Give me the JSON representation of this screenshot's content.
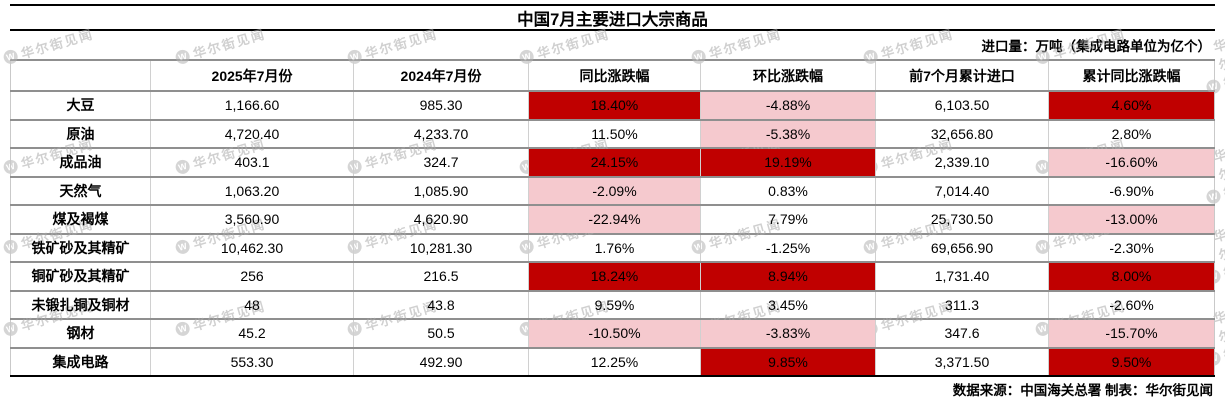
{
  "chart_data": {
    "type": "table",
    "title": "中国7月主要进口大宗商品",
    "unit_note": "进口量：万吨（集成电路单位为亿个）",
    "columns": [
      "",
      "2025年7月份",
      "2024年7月份",
      "同比涨跌幅",
      "环比涨跌幅",
      "前7个月累计进口",
      "累计同比涨跌幅"
    ],
    "rows": [
      {
        "cells": [
          "大豆",
          "1,166.60",
          "985.30",
          "18.40%",
          "-4.88%",
          "6,103.50",
          "4.60%"
        ],
        "highlights": [
          "",
          "",
          "",
          "red",
          "pink",
          "",
          "red"
        ]
      },
      {
        "cells": [
          "原油",
          "4,720.40",
          "4,233.70",
          "11.50%",
          "-5.38%",
          "32,656.80",
          "2.80%"
        ],
        "highlights": [
          "",
          "",
          "",
          "",
          "pink",
          "",
          ""
        ]
      },
      {
        "cells": [
          "成品油",
          "403.1",
          "324.7",
          "24.15%",
          "19.19%",
          "2,339.10",
          "-16.60%"
        ],
        "highlights": [
          "",
          "",
          "",
          "red",
          "red",
          "",
          "pink"
        ]
      },
      {
        "cells": [
          "天然气",
          "1,063.20",
          "1,085.90",
          "-2.09%",
          "0.83%",
          "7,014.40",
          "-6.90%"
        ],
        "highlights": [
          "",
          "",
          "",
          "pink",
          "",
          "",
          ""
        ]
      },
      {
        "cells": [
          "煤及褐煤",
          "3,560.90",
          "4,620.90",
          "-22.94%",
          "7.79%",
          "25,730.50",
          "-13.00%"
        ],
        "highlights": [
          "",
          "",
          "",
          "pink",
          "",
          "",
          "pink"
        ]
      },
      {
        "cells": [
          "铁矿砂及其精矿",
          "10,462.30",
          "10,281.30",
          "1.76%",
          "-1.25%",
          "69,656.90",
          "-2.30%"
        ],
        "highlights": [
          "",
          "",
          "",
          "",
          "",
          "",
          ""
        ]
      },
      {
        "cells": [
          "铜矿砂及其精矿",
          "256",
          "216.5",
          "18.24%",
          "8.94%",
          "1,731.40",
          "8.00%"
        ],
        "highlights": [
          "",
          "",
          "",
          "red",
          "red",
          "",
          "red"
        ]
      },
      {
        "cells": [
          "未锻扎铜及铜材",
          "48",
          "43.8",
          "9.59%",
          "3.45%",
          "311.3",
          "-2.60%"
        ],
        "highlights": [
          "",
          "",
          "",
          "",
          "",
          "",
          ""
        ]
      },
      {
        "cells": [
          "钢材",
          "45.2",
          "50.5",
          "-10.50%",
          "-3.83%",
          "347.6",
          "-15.70%"
        ],
        "highlights": [
          "",
          "",
          "",
          "pink",
          "pink",
          "",
          "pink"
        ]
      },
      {
        "cells": [
          "集成电路",
          "553.30",
          "492.90",
          "12.25%",
          "9.85%",
          "3,371.50",
          "9.50%"
        ],
        "highlights": [
          "",
          "",
          "",
          "",
          "red",
          "",
          "red"
        ]
      }
    ],
    "highlight_colors": {
      "red": "#c00000",
      "pink": "#f5c9ce"
    },
    "layout": {
      "grid": "on",
      "legend": "none"
    }
  },
  "footer": {
    "source_note": "数据来源：中国海关总署 制表：华尔街见闻"
  },
  "watermark": {
    "text": "华尔街见闻",
    "logo_letter": "W"
  }
}
